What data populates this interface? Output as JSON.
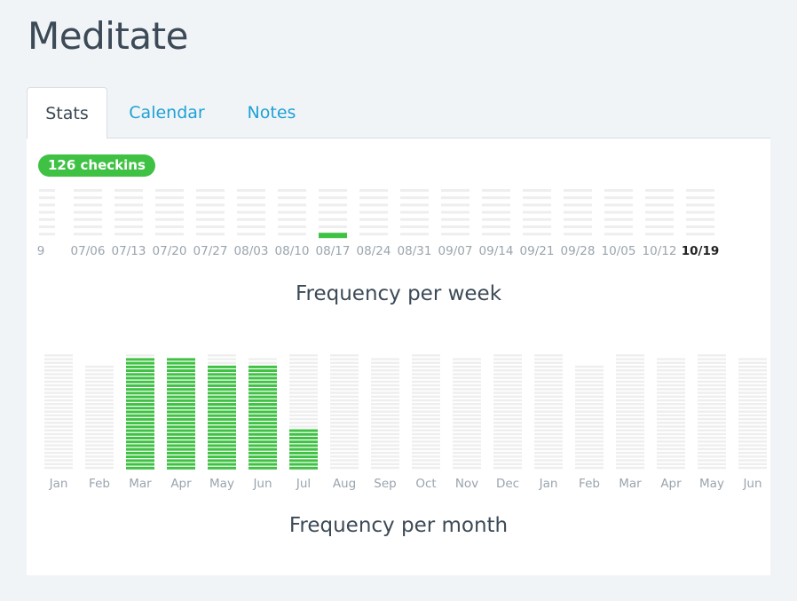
{
  "app": {
    "title": "Meditate"
  },
  "tabs": [
    {
      "label": "Stats",
      "active": true
    },
    {
      "label": "Calendar",
      "active": false
    },
    {
      "label": "Notes",
      "active": false
    }
  ],
  "stats": {
    "checkins_badge": "126 checkins",
    "colors": {
      "accent": "#3fc144",
      "empty": "#eeeeee",
      "current_label": "#222222"
    }
  },
  "chart_data": [
    {
      "type": "bar",
      "title": "Frequency per week",
      "categories": [
        "9",
        "07/06",
        "07/13",
        "07/20",
        "07/27",
        "08/03",
        "08/10",
        "08/17",
        "08/24",
        "08/31",
        "09/07",
        "09/14",
        "09/21",
        "09/28",
        "10/05",
        "10/12",
        "10/19"
      ],
      "values": [
        0,
        0,
        0,
        0,
        0,
        0,
        0,
        1,
        0,
        0,
        0,
        0,
        0,
        0,
        0,
        0,
        0
      ],
      "ylim": [
        0,
        7
      ],
      "highlight_category": "10/19"
    },
    {
      "type": "bar",
      "title": "Frequency per month",
      "categories": [
        "Jan",
        "Feb",
        "Mar",
        "Apr",
        "May",
        "Jun",
        "Jul",
        "Aug",
        "Sep",
        "Oct",
        "Nov",
        "Dec",
        "Jan",
        "Feb",
        "Mar",
        "Apr",
        "May",
        "Jun"
      ],
      "values": [
        0,
        0,
        30,
        30,
        28,
        28,
        11,
        0,
        0,
        0,
        0,
        0,
        0,
        0,
        0,
        0,
        0,
        0
      ],
      "capacity": [
        31,
        28,
        31,
        30,
        31,
        30,
        31,
        31,
        30,
        31,
        30,
        31,
        31,
        28,
        31,
        30,
        31,
        30
      ]
    }
  ]
}
